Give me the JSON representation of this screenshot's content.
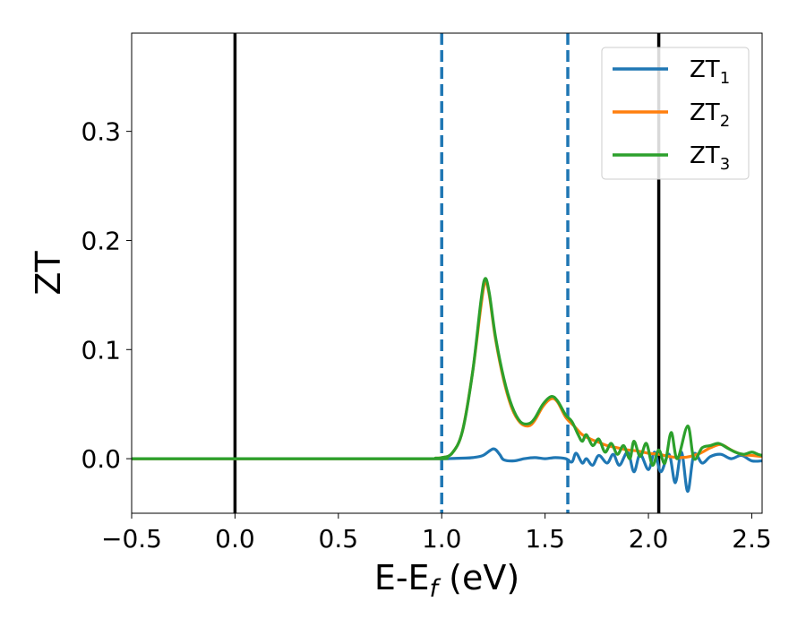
{
  "chart_data": {
    "type": "line",
    "xlabel": "E-E",
    "xlabel_sub": "f",
    "xlabel_unit": " (eV)",
    "ylabel": "ZT",
    "xlim": [
      -0.5,
      2.55
    ],
    "ylim": [
      -0.05,
      0.39
    ],
    "xticks": [
      -0.5,
      0.0,
      0.5,
      1.0,
      1.5,
      2.0,
      2.5
    ],
    "xtick_labels": [
      "−0.5",
      "0.0",
      "0.5",
      "1.0",
      "1.5",
      "2.0",
      "2.5"
    ],
    "yticks": [
      0.0,
      0.1,
      0.2,
      0.3
    ],
    "ytick_labels": [
      "0.0",
      "0.1",
      "0.2",
      "0.3"
    ],
    "grid": false,
    "legend_position": "top-right",
    "vlines": [
      {
        "x": 0.0,
        "style": "solid",
        "color": "#000000"
      },
      {
        "x": 2.05,
        "style": "solid",
        "color": "#000000"
      },
      {
        "x": 1.0,
        "style": "dashed",
        "color": "#1f77b4"
      },
      {
        "x": 1.61,
        "style": "dashed",
        "color": "#1f77b4"
      }
    ],
    "series": [
      {
        "name": "ZT",
        "sub": "1",
        "color": "#1f77b4",
        "points": [
          [
            -0.5,
            0.0
          ],
          [
            0.9,
            0.0
          ],
          [
            1.0,
            0.0
          ],
          [
            1.1,
            0.0005
          ],
          [
            1.15,
            0.001
          ],
          [
            1.2,
            0.003
          ],
          [
            1.25,
            0.009
          ],
          [
            1.28,
            0.004
          ],
          [
            1.3,
            -0.001
          ],
          [
            1.35,
            -0.002
          ],
          [
            1.4,
            0.0
          ],
          [
            1.45,
            0.001
          ],
          [
            1.5,
            0.0
          ],
          [
            1.55,
            0.001
          ],
          [
            1.6,
            0.0
          ],
          [
            1.63,
            -0.003
          ],
          [
            1.65,
            0.005
          ],
          [
            1.68,
            -0.004
          ],
          [
            1.7,
            0.0
          ],
          [
            1.73,
            -0.006
          ],
          [
            1.76,
            0.003
          ],
          [
            1.8,
            -0.004
          ],
          [
            1.83,
            0.004
          ],
          [
            1.86,
            -0.006
          ],
          [
            1.9,
            0.006
          ],
          [
            1.93,
            -0.012
          ],
          [
            1.96,
            0.004
          ],
          [
            2.0,
            -0.01
          ],
          [
            2.03,
            0.006
          ],
          [
            2.06,
            -0.012
          ],
          [
            2.1,
            0.004
          ],
          [
            2.13,
            -0.022
          ],
          [
            2.16,
            0.006
          ],
          [
            2.19,
            -0.03
          ],
          [
            2.22,
            0.004
          ],
          [
            2.26,
            -0.004
          ],
          [
            2.3,
            0.002
          ],
          [
            2.35,
            0.004
          ],
          [
            2.4,
            0.0
          ],
          [
            2.45,
            0.003
          ],
          [
            2.5,
            -0.002
          ],
          [
            2.55,
            -0.002
          ]
        ]
      },
      {
        "name": "ZT",
        "sub": "2",
        "color": "#ff7f0e",
        "points": [
          [
            -0.5,
            0.0
          ],
          [
            0.9,
            0.0
          ],
          [
            0.97,
            0.0005
          ],
          [
            1.0,
            0.001
          ],
          [
            1.05,
            0.005
          ],
          [
            1.1,
            0.025
          ],
          [
            1.15,
            0.08
          ],
          [
            1.19,
            0.14
          ],
          [
            1.21,
            0.162
          ],
          [
            1.23,
            0.15
          ],
          [
            1.26,
            0.11
          ],
          [
            1.3,
            0.072
          ],
          [
            1.34,
            0.046
          ],
          [
            1.38,
            0.033
          ],
          [
            1.42,
            0.03
          ],
          [
            1.45,
            0.035
          ],
          [
            1.49,
            0.048
          ],
          [
            1.53,
            0.055
          ],
          [
            1.56,
            0.052
          ],
          [
            1.6,
            0.038
          ],
          [
            1.64,
            0.03
          ],
          [
            1.68,
            0.022
          ],
          [
            1.72,
            0.018
          ],
          [
            1.76,
            0.015
          ],
          [
            1.8,
            0.012
          ],
          [
            1.85,
            0.01
          ],
          [
            1.9,
            0.008
          ],
          [
            1.95,
            0.007
          ],
          [
            2.0,
            0.005
          ],
          [
            2.05,
            0.004
          ],
          [
            2.1,
            0.002
          ],
          [
            2.15,
            0.001
          ],
          [
            2.2,
            0.002
          ],
          [
            2.25,
            0.005
          ],
          [
            2.3,
            0.01
          ],
          [
            2.35,
            0.013
          ],
          [
            2.4,
            0.008
          ],
          [
            2.45,
            0.004
          ],
          [
            2.5,
            0.003
          ],
          [
            2.55,
            0.002
          ]
        ]
      },
      {
        "name": "ZT",
        "sub": "3",
        "color": "#2ca02c",
        "points": [
          [
            -0.5,
            0.0
          ],
          [
            0.9,
            0.0
          ],
          [
            0.97,
            0.0005
          ],
          [
            1.0,
            0.001
          ],
          [
            1.05,
            0.005
          ],
          [
            1.1,
            0.025
          ],
          [
            1.15,
            0.08
          ],
          [
            1.19,
            0.145
          ],
          [
            1.21,
            0.165
          ],
          [
            1.23,
            0.152
          ],
          [
            1.26,
            0.112
          ],
          [
            1.3,
            0.074
          ],
          [
            1.34,
            0.048
          ],
          [
            1.38,
            0.034
          ],
          [
            1.42,
            0.032
          ],
          [
            1.45,
            0.037
          ],
          [
            1.49,
            0.05
          ],
          [
            1.53,
            0.057
          ],
          [
            1.56,
            0.053
          ],
          [
            1.6,
            0.04
          ],
          [
            1.63,
            0.034
          ],
          [
            1.66,
            0.022
          ],
          [
            1.68,
            0.016
          ],
          [
            1.7,
            0.022
          ],
          [
            1.73,
            0.012
          ],
          [
            1.76,
            0.018
          ],
          [
            1.79,
            0.006
          ],
          [
            1.82,
            0.014
          ],
          [
            1.85,
            0.004
          ],
          [
            1.88,
            0.012
          ],
          [
            1.91,
            0.0
          ],
          [
            1.93,
            0.016
          ],
          [
            1.96,
            0.002
          ],
          [
            1.99,
            0.014
          ],
          [
            2.02,
            -0.006
          ],
          [
            2.05,
            0.008
          ],
          [
            2.08,
            -0.004
          ],
          [
            2.11,
            0.024
          ],
          [
            2.14,
            0.0
          ],
          [
            2.19,
            0.03
          ],
          [
            2.22,
            0.0
          ],
          [
            2.26,
            0.01
          ],
          [
            2.3,
            0.012
          ],
          [
            2.34,
            0.014
          ],
          [
            2.38,
            0.01
          ],
          [
            2.42,
            0.006
          ],
          [
            2.46,
            0.004
          ],
          [
            2.5,
            0.006
          ],
          [
            2.53,
            0.004
          ],
          [
            2.55,
            0.003
          ]
        ]
      }
    ]
  }
}
